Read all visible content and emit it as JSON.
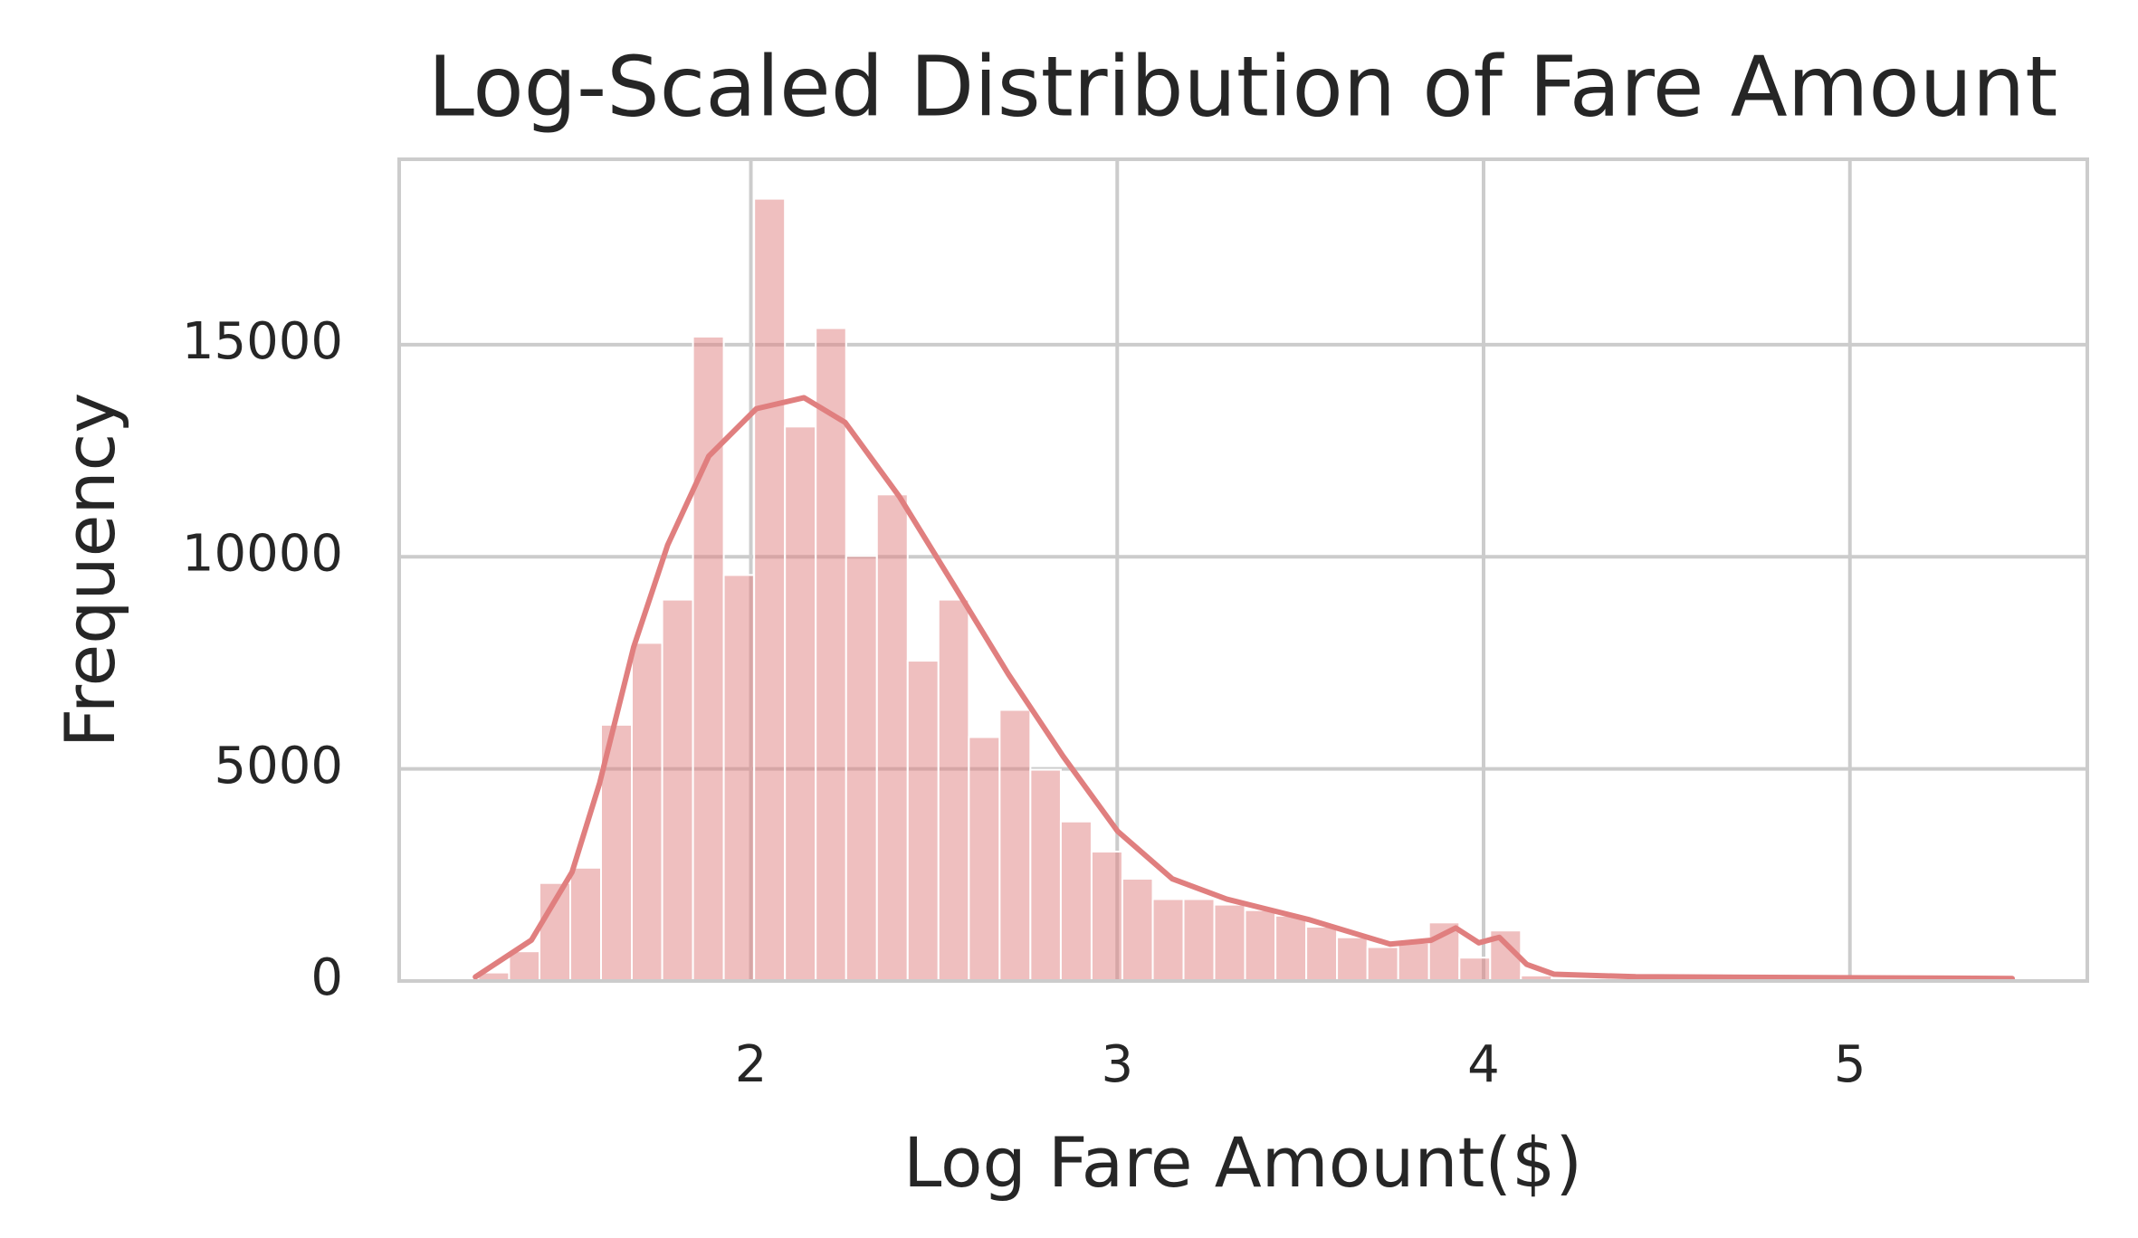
{
  "chart_data": {
    "type": "histogram",
    "title": "Log-Scaled Distribution of Fare Amount",
    "x_label": "Log Fare Amount($)",
    "y_label": "Frequency",
    "bins": [
      1.256,
      1.34,
      1.423,
      1.507,
      1.591,
      1.675,
      1.758,
      1.842,
      1.926,
      2.009,
      2.093,
      2.177,
      2.26,
      2.344,
      2.428,
      2.512,
      2.595,
      2.679,
      2.763,
      2.846,
      2.93,
      3.014,
      3.097,
      3.181,
      3.265,
      3.349,
      3.432,
      3.516,
      3.6,
      3.683,
      3.767,
      3.851,
      3.934,
      4.018,
      4.102,
      4.186,
      4.269,
      4.353,
      4.437,
      4.52,
      4.604,
      4.688,
      4.771,
      4.855,
      4.939,
      5.023,
      5.106,
      5.19,
      5.274,
      5.357,
      5.441
    ],
    "values": [
      200,
      700,
      2310,
      2670,
      6040,
      7970,
      8990,
      15190,
      9570,
      18440,
      13070,
      15390,
      10020,
      11470,
      7550,
      8990,
      5750,
      6390,
      4980,
      3760,
      3050,
      2410,
      1930,
      1930,
      1800,
      1670,
      1540,
      1280,
      1030,
      800,
      900,
      1380,
      550,
      1190,
      130,
      40,
      25,
      15,
      10,
      8,
      5,
      5,
      3,
      3,
      2,
      2,
      1,
      1,
      1,
      1
    ],
    "color": "#e07f7f",
    "kde_x": [
      1.248,
      1.401,
      1.512,
      1.587,
      1.68,
      1.773,
      1.885,
      2.015,
      2.145,
      2.257,
      2.406,
      2.555,
      2.703,
      2.852,
      3.001,
      3.15,
      3.299,
      3.522,
      3.745,
      3.857,
      3.924,
      3.987,
      4.043,
      4.118,
      4.192,
      4.415,
      5.443
    ],
    "kde_values": [
      96,
      964,
      2570,
      4660,
      7870,
      10280,
      12370,
      13490,
      13750,
      13170,
      11410,
      9320,
      7230,
      5300,
      3530,
      2410,
      1930,
      1450,
      870,
      960,
      1250,
      900,
      1030,
      390,
      160,
      100,
      60
    ],
    "kde_color": "#e07f7f",
    "xlim": [
      1.04,
      5.648
    ],
    "ylim": [
      0,
      19370
    ],
    "xticks": [
      2,
      3,
      4,
      5
    ],
    "yticks": [
      0,
      5000,
      10000,
      15000
    ],
    "grid": true
  }
}
